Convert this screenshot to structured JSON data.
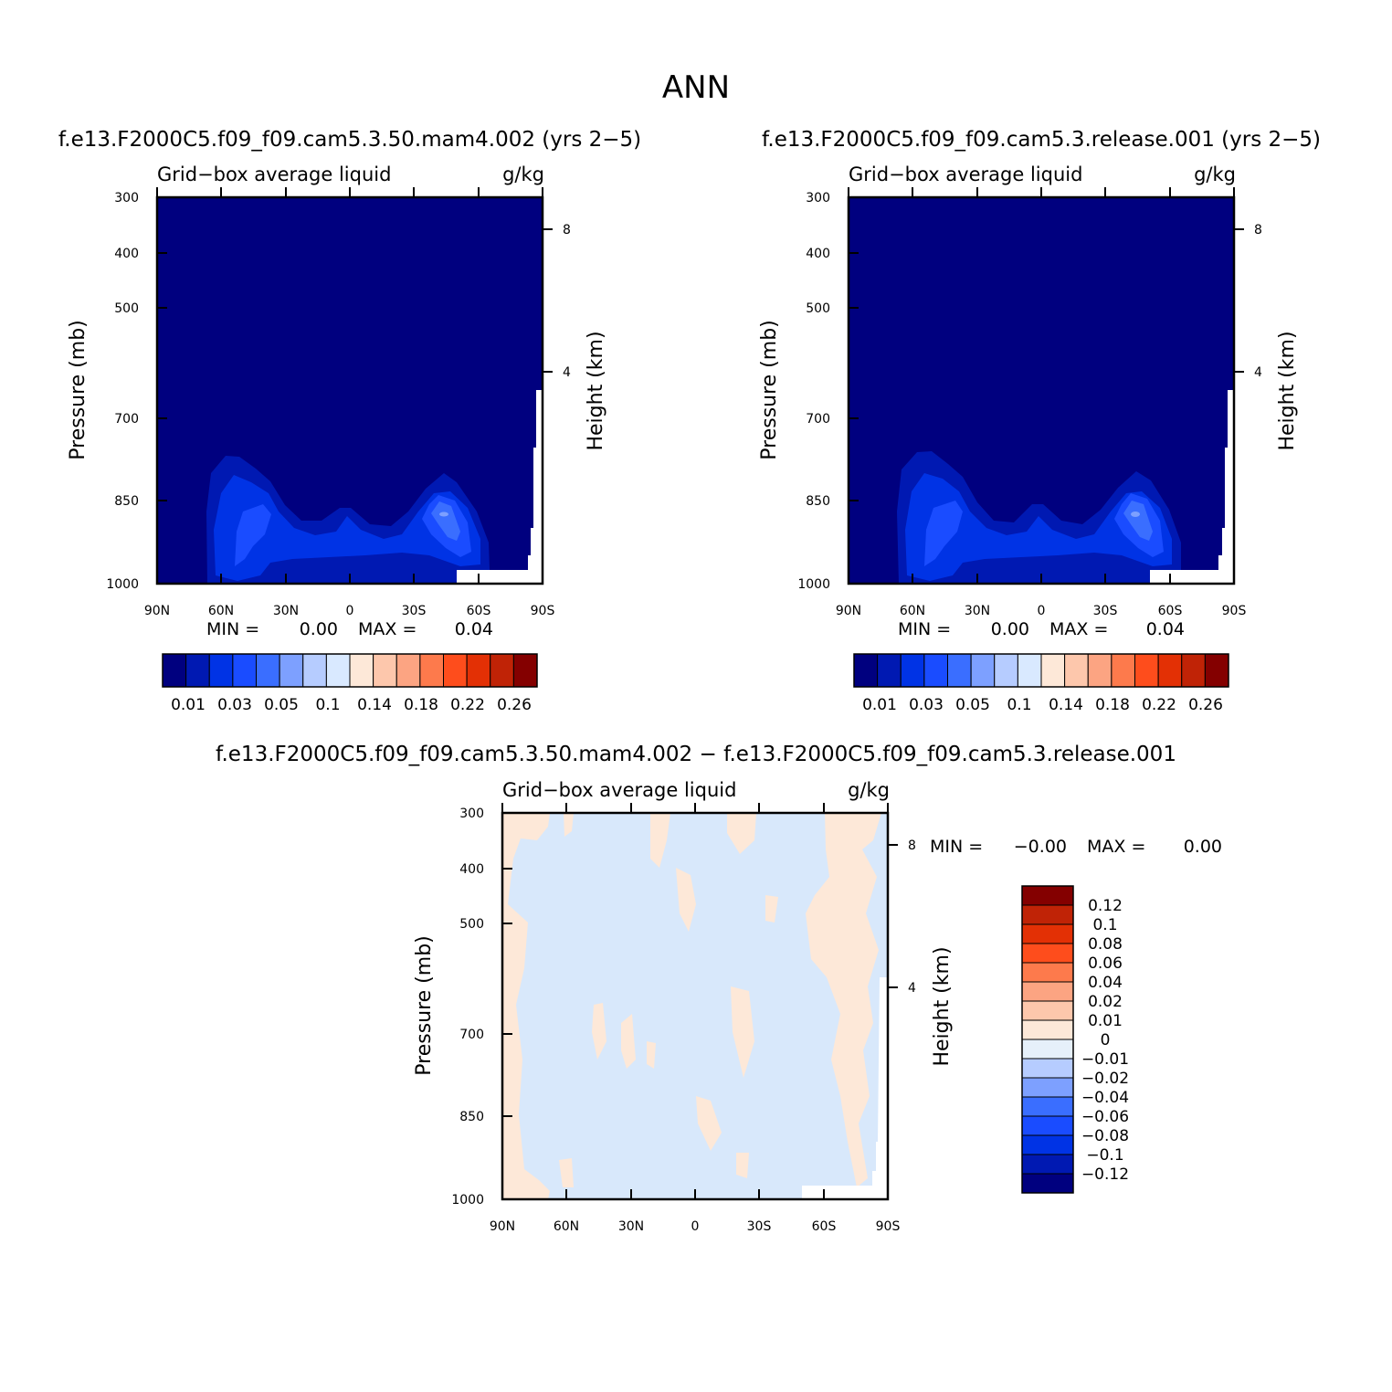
{
  "main_title": "ANN",
  "chart_data": [
    {
      "type": "heatmap",
      "title": "f.e13.F2000C5.f09_f09.cam5.3.50.mam4.002 (yrs 2−5)",
      "left_subtitle": "Grid−box average liquid",
      "right_subtitle": "g/kg",
      "ylabel": "Pressure (mb)",
      "y2label": "Height (km)",
      "x_ticks": [
        "90N",
        "60N",
        "30N",
        "0",
        "30S",
        "60S",
        "90S"
      ],
      "y_ticks": [
        "300",
        "400",
        "500",
        "700",
        "850",
        "1000"
      ],
      "y2_ticks": [
        "8",
        "4"
      ],
      "ylim": [
        1000,
        300
      ],
      "y_scale": "log",
      "min_label": "MIN =",
      "min_value": "0.00",
      "max_label": "MAX =",
      "max_value": "0.04",
      "colorbar": {
        "orientation": "horizontal",
        "labels": [
          "0.01",
          "0.03",
          "0.05",
          "0.1",
          "0.14",
          "0.18",
          "0.22",
          "0.26"
        ],
        "colors": [
          "#00007f",
          "#0019b2",
          "#0033e5",
          "#1a4cff",
          "#3a6eff",
          "#7da0ff",
          "#b6ccff",
          "#d9e9ff",
          "#fde8d8",
          "#fdc7ac",
          "#fca482",
          "#fd7a4c",
          "#fe4d1c",
          "#e33005",
          "#c02306",
          "#840000"
        ]
      },
      "features": [
        {
          "label": "low-level maximum near 50-55N, 850-950 mb",
          "value": 0.03
        },
        {
          "label": "low-level maximum near 45-50S, 850-950 mb",
          "value": 0.04
        }
      ]
    },
    {
      "type": "heatmap",
      "title": "f.e13.F2000C5.f09_f09.cam5.3.release.001 (yrs 2−5)",
      "left_subtitle": "Grid−box average liquid",
      "right_subtitle": "g/kg",
      "ylabel": "Pressure (mb)",
      "y2label": "Height (km)",
      "x_ticks": [
        "90N",
        "60N",
        "30N",
        "0",
        "30S",
        "60S",
        "90S"
      ],
      "y_ticks": [
        "300",
        "400",
        "500",
        "700",
        "850",
        "1000"
      ],
      "y2_ticks": [
        "8",
        "4"
      ],
      "ylim": [
        1000,
        300
      ],
      "y_scale": "log",
      "min_label": "MIN =",
      "min_value": "0.00",
      "max_label": "MAX =",
      "max_value": "0.04",
      "colorbar": {
        "orientation": "horizontal",
        "labels": [
          "0.01",
          "0.03",
          "0.05",
          "0.1",
          "0.14",
          "0.18",
          "0.22",
          "0.26"
        ],
        "colors": [
          "#00007f",
          "#0019b2",
          "#0033e5",
          "#1a4cff",
          "#3a6eff",
          "#7da0ff",
          "#b6ccff",
          "#d9e9ff",
          "#fde8d8",
          "#fdc7ac",
          "#fca482",
          "#fd7a4c",
          "#fe4d1c",
          "#e33005",
          "#c02306",
          "#840000"
        ]
      }
    },
    {
      "type": "heatmap",
      "title": "f.e13.F2000C5.f09_f09.cam5.3.50.mam4.002 − f.e13.F2000C5.f09_f09.cam5.3.release.001",
      "left_subtitle": "Grid−box average liquid",
      "right_subtitle": "g/kg",
      "ylabel": "Pressure (mb)",
      "y2label": "Height (km)",
      "x_ticks": [
        "90N",
        "60N",
        "30N",
        "0",
        "30S",
        "60S",
        "90S"
      ],
      "y_ticks": [
        "300",
        "400",
        "500",
        "700",
        "850",
        "1000"
      ],
      "y2_ticks": [
        "8",
        "4"
      ],
      "ylim": [
        1000,
        300
      ],
      "y_scale": "log",
      "min_label": "MIN =",
      "min_value": "−0.00",
      "max_label": "MAX =",
      "max_value": "0.00",
      "colorbar": {
        "orientation": "vertical",
        "labels": [
          "0.12",
          "0.1",
          "0.08",
          "0.06",
          "0.04",
          "0.02",
          "0.01",
          "0",
          "−0.01",
          "−0.02",
          "−0.04",
          "−0.06",
          "−0.08",
          "−0.1",
          "−0.12"
        ],
        "colors": [
          "#840000",
          "#c02306",
          "#e33005",
          "#fe4d1c",
          "#fd7a4c",
          "#fca482",
          "#fdc7ac",
          "#fde8d8",
          "#e6f0fa",
          "#b6ccff",
          "#7da0ff",
          "#3a6eff",
          "#1a4cff",
          "#0033e5",
          "#0019b2",
          "#00007f"
        ]
      }
    }
  ]
}
